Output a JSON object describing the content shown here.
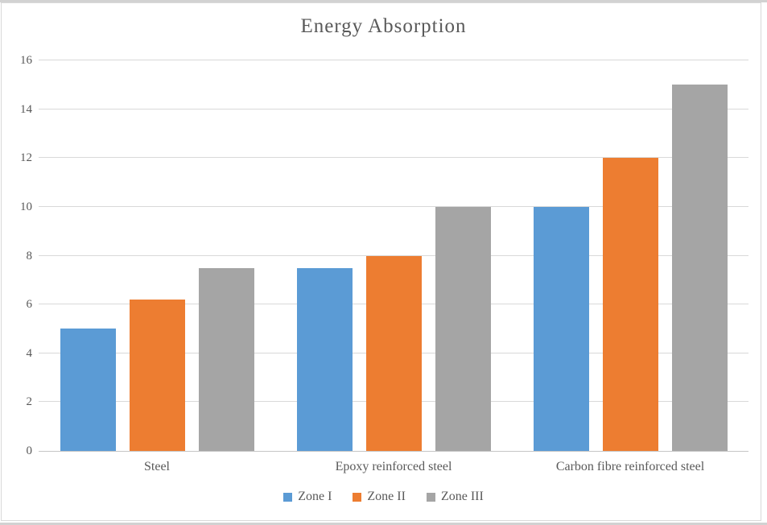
{
  "chart_data": {
    "type": "bar",
    "title": "Energy Absorption",
    "categories": [
      "Steel",
      "Epoxy reinforced steel",
      "Carbon fibre reinforced steel"
    ],
    "series": [
      {
        "name": "Zone I",
        "color": "#5B9BD5",
        "values": [
          5,
          7.5,
          10
        ]
      },
      {
        "name": "Zone II",
        "color": "#ED7D31",
        "values": [
          6.2,
          8,
          12
        ]
      },
      {
        "name": "Zone III",
        "color": "#A5A5A5",
        "values": [
          7.5,
          10,
          15
        ]
      }
    ],
    "xlabel": "",
    "ylabel": "",
    "ylim": [
      0,
      16
    ],
    "ytick_step": 2,
    "ytick_labels": [
      "0",
      "2",
      "4",
      "6",
      "8",
      "10",
      "12",
      "14",
      "16"
    ],
    "grid": true,
    "legend_position": "bottom"
  },
  "colors": {
    "gridline": "#D9D9D9",
    "axis_line": "#C6C6C6",
    "text": "#595959",
    "chart_border": "#D9D9D9",
    "edge_strip": "#D2D2D2",
    "background": "#FFFFFF"
  }
}
